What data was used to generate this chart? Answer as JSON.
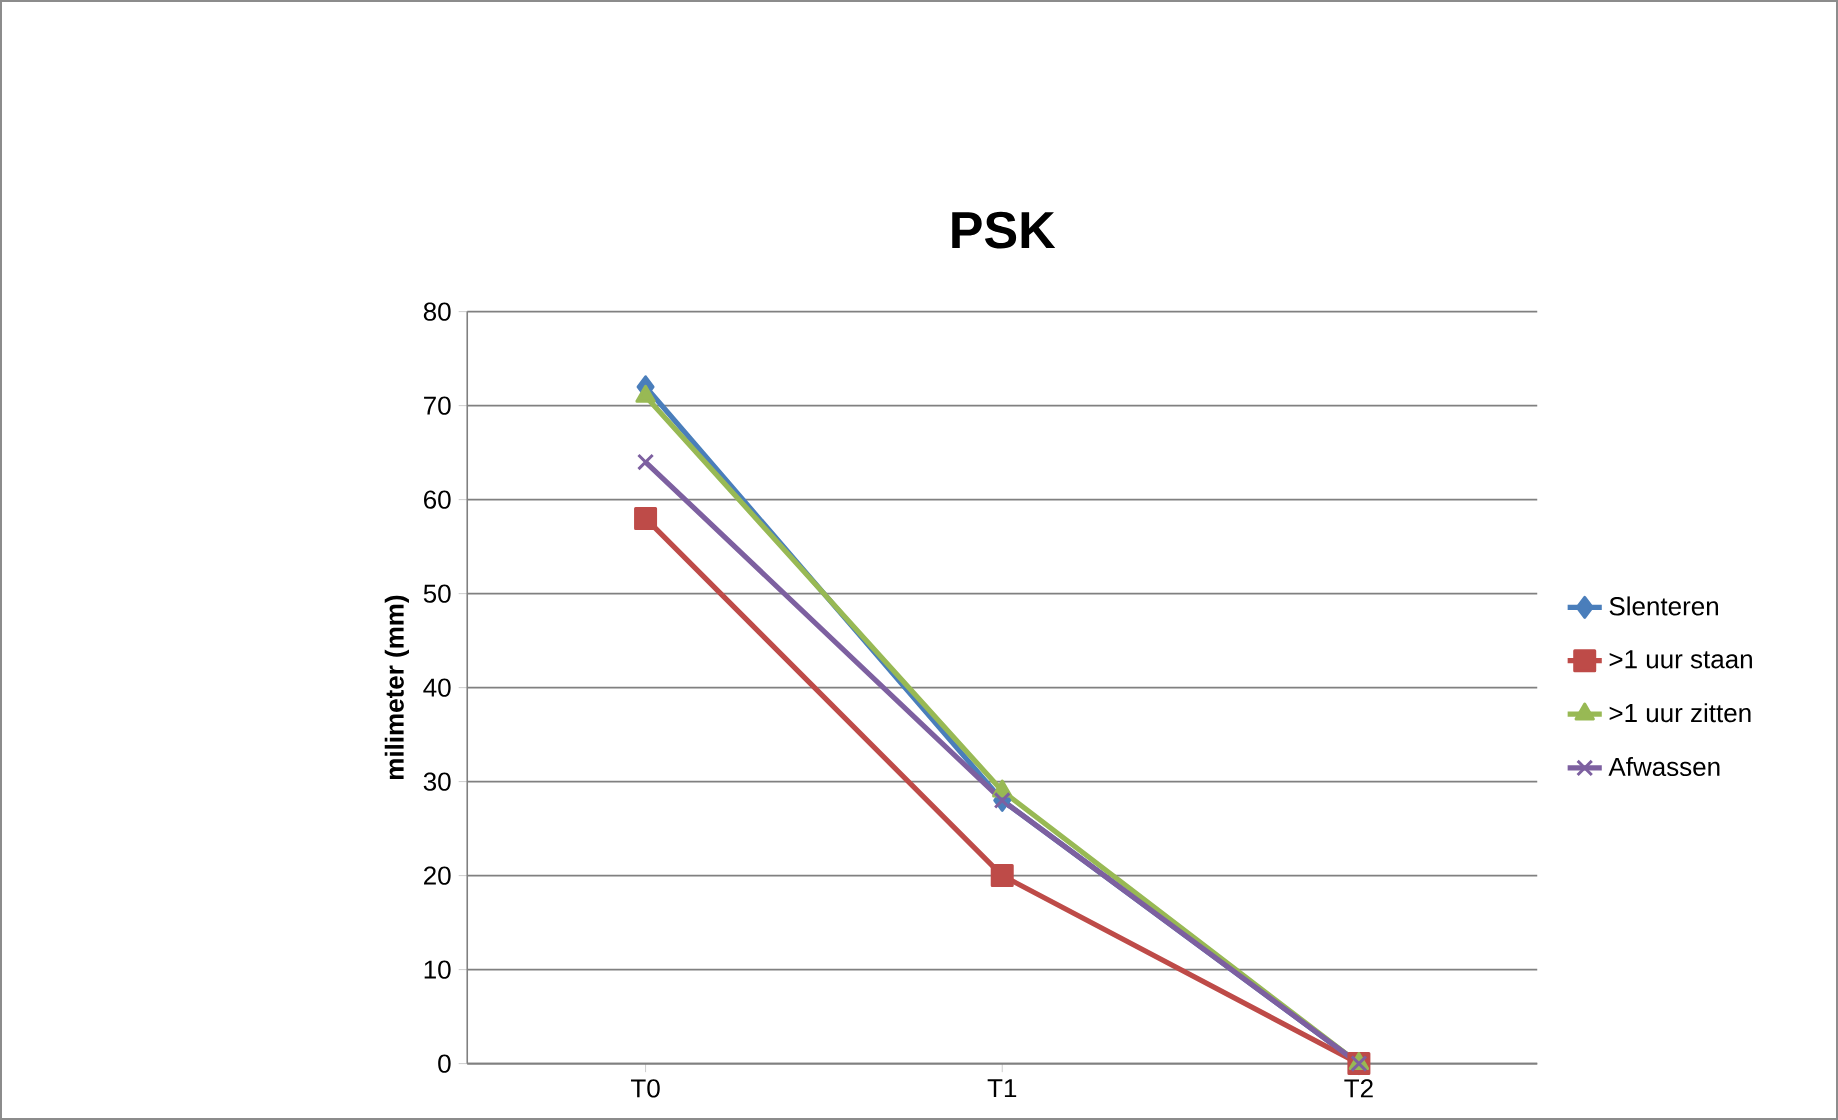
{
  "chart_data": {
    "type": "line",
    "title": "PSK",
    "ylabel": "milimeter (mm)",
    "categories": [
      "T0",
      "T1",
      "T2"
    ],
    "series": [
      {
        "name": "Slenteren",
        "color": "#4a7ebb",
        "marker": "diamond",
        "values": [
          72,
          28,
          0
        ]
      },
      {
        "name": ">1 uur staan",
        "color": "#be4b48",
        "marker": "square",
        "values": [
          58,
          20,
          0
        ]
      },
      {
        "name": ">1 uur zitten",
        "color": "#98b954",
        "marker": "triangle",
        "values": [
          71,
          29,
          0
        ]
      },
      {
        "name": "Afwassen",
        "color": "#7d60a0",
        "marker": "cross",
        "values": [
          64,
          28,
          0
        ]
      }
    ],
    "ylim": [
      0,
      80
    ],
    "yticks": [
      0,
      10,
      20,
      30,
      40,
      50,
      60,
      70,
      80
    ],
    "grid": "y",
    "legend": "right"
  }
}
